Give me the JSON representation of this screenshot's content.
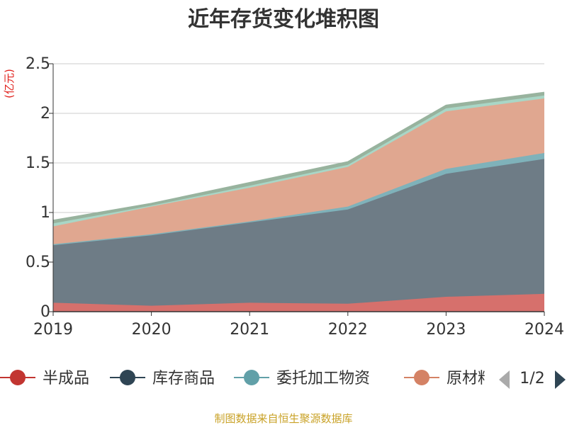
{
  "chart_data": {
    "type": "area",
    "stacked": true,
    "title": "近年存货变化堆积图",
    "unit_label": "(亿元)",
    "categories": [
      "2019",
      "2020",
      "2021",
      "2022",
      "2023",
      "2024"
    ],
    "y_ticks": [
      "0",
      "0.5",
      "1",
      "1.5",
      "2",
      "2.5"
    ],
    "ylim": [
      0,
      2.5
    ],
    "grid": true,
    "series": [
      {
        "name": "半成品",
        "color": "#d6706c",
        "values": [
          0.09,
          0.06,
          0.09,
          0.08,
          0.15,
          0.18
        ]
      },
      {
        "name": "库存商品",
        "color": "#6e7c86",
        "values": [
          0.58,
          0.71,
          0.81,
          0.95,
          1.24,
          1.36
        ]
      },
      {
        "name": "委托加工物资",
        "color": "#7fb2ba",
        "values": [
          0.01,
          0.01,
          0.01,
          0.03,
          0.05,
          0.06
        ]
      },
      {
        "name": "原材料",
        "color": "#e0a790",
        "values": [
          0.18,
          0.28,
          0.34,
          0.4,
          0.58,
          0.55
        ]
      },
      {
        "name": "",
        "color": "#a9d6c6",
        "values": [
          0.03,
          0.01,
          0.02,
          0.02,
          0.03,
          0.03
        ]
      },
      {
        "name": "",
        "color": "#98b39e",
        "values": [
          0.03,
          0.02,
          0.03,
          0.03,
          0.03,
          0.03
        ]
      }
    ],
    "legend": {
      "items": [
        {
          "name": "半成品",
          "color": "#c23531"
        },
        {
          "name": "库存商品",
          "color": "#2f4554"
        },
        {
          "name": "委托加工物资",
          "color": "#61a0a8"
        },
        {
          "name": "原材料",
          "color": "#d48265"
        }
      ],
      "page": "1/2",
      "placement": "bottom"
    },
    "source": "制图数据来自恒生聚源数据库"
  }
}
